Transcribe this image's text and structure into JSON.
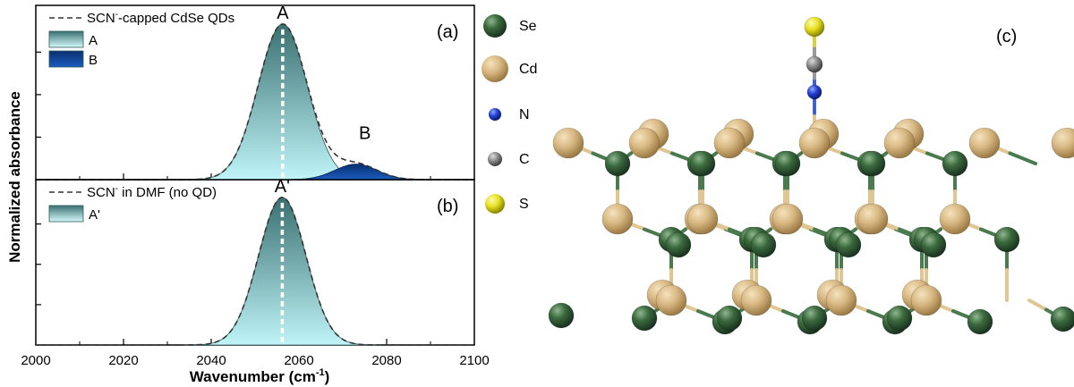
{
  "figure": {
    "ylabel": "Normalized absorbance",
    "xlabel_main": "Wavenumber (cm",
    "xlabel_sup": "-1",
    "xlabel_end": ")"
  },
  "chart_data": [
    {
      "type": "area",
      "panel_label": "(a)",
      "xlim": [
        2000,
        2100
      ],
      "x_ticks": [
        "2000",
        "2020",
        "2040",
        "2060",
        "2080",
        "2100"
      ],
      "ylim": [
        0,
        1.12
      ],
      "legend": {
        "line_prefix": "SCN",
        "line_sup": "-",
        "line_suffix": "-capped CdSe QDs",
        "entries": [
          "A",
          "B"
        ]
      },
      "series": [
        {
          "name": "A",
          "kind": "gaussian",
          "center": 2056.3,
          "height": 1.0,
          "sigma": 5.6
        },
        {
          "name": "B",
          "kind": "gaussian",
          "center": 2073.0,
          "height": 0.1,
          "sigma": 4.8
        }
      ],
      "peak_labels": [
        "A",
        "B"
      ],
      "peak_marker_x": 2056.3,
      "colors": {
        "A_top": "#3a7070",
        "A_bottom": "#bff5f8",
        "B": "#0d3f8c"
      }
    },
    {
      "type": "area",
      "panel_label": "(b)",
      "xlim": [
        2000,
        2100
      ],
      "ylim": [
        0,
        1.12
      ],
      "legend": {
        "line_prefix": "SCN",
        "line_sup": "-",
        "line_suffix": " in DMF (no QD)",
        "entries": [
          "A'"
        ]
      },
      "series": [
        {
          "name": "A'",
          "kind": "gaussian",
          "center": 2056.2,
          "height": 1.0,
          "sigma": 5.4
        }
      ],
      "peak_labels": [
        "A'"
      ],
      "peak_marker_x": 2056.2,
      "colors": {
        "A_top": "#3a7070",
        "A_bottom": "#bff5f8"
      }
    }
  ],
  "structure": {
    "panel_label": "(c)",
    "legend": [
      {
        "label": "Se",
        "color": "#2f5a33"
      },
      {
        "label": "Cd",
        "color": "#d8b882"
      },
      {
        "label": "N",
        "color": "#1f3fc8"
      },
      {
        "label": "C",
        "color": "#8a8a8a"
      },
      {
        "label": "S",
        "color": "#e5e020"
      }
    ]
  }
}
